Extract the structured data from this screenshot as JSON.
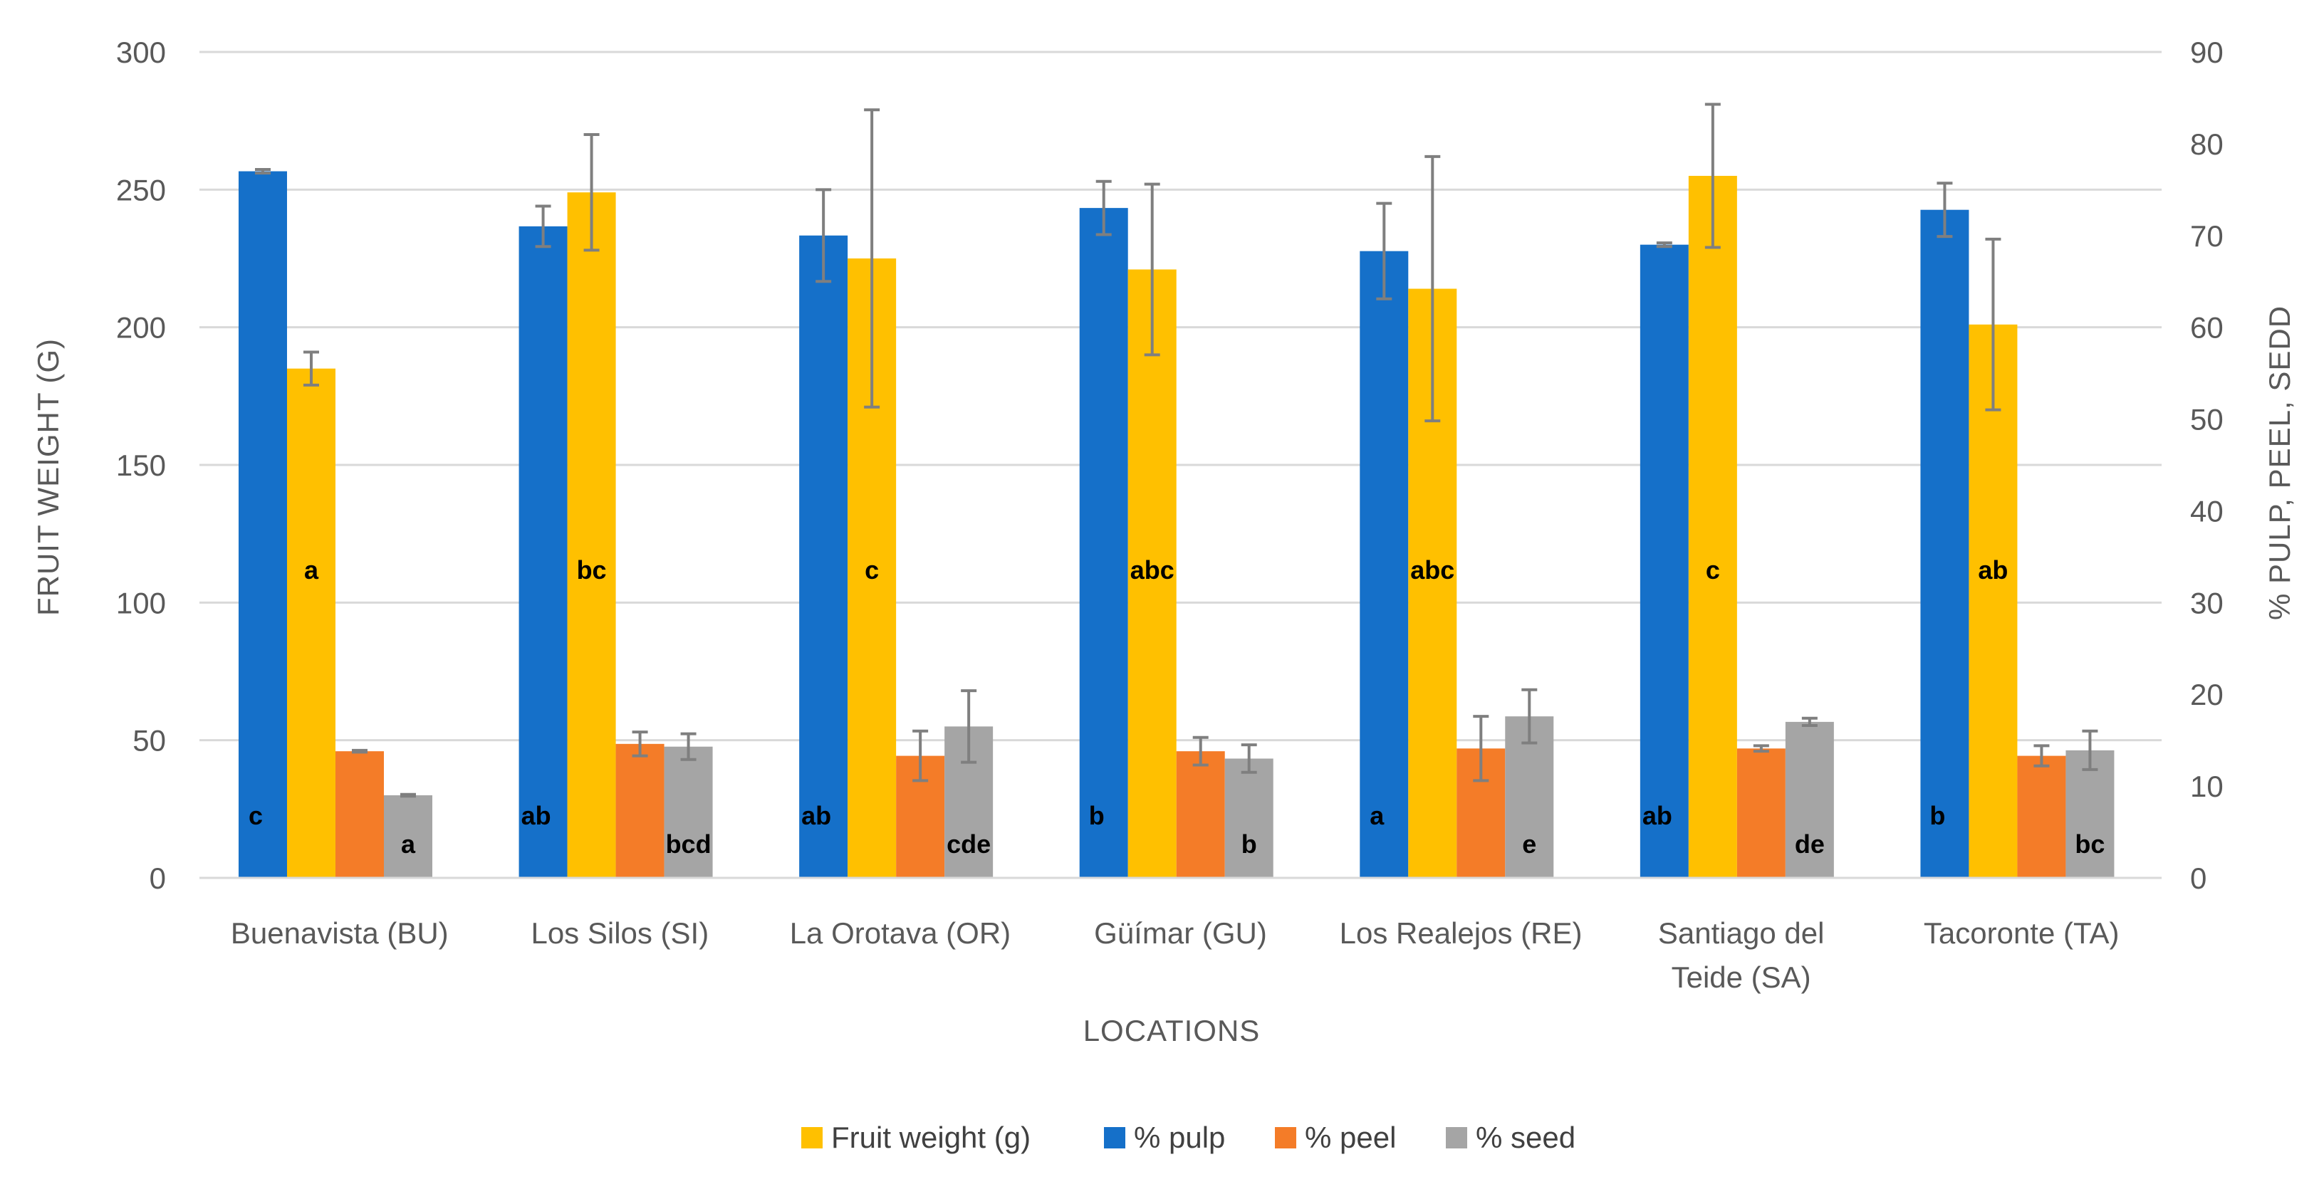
{
  "chart_data": {
    "type": "bar",
    "title": "",
    "xlabel": "LOCATIONS",
    "ylabel_left": "FRUIT WEIGHT (G)",
    "ylabel_right": "% PULP, PEEL, SEDD",
    "ylim_left": [
      0,
      300
    ],
    "ylim_right": [
      0,
      90
    ],
    "yticks_left": [
      "0",
      "50",
      "100",
      "150",
      "200",
      "250",
      "300"
    ],
    "yticks_right": [
      "0",
      "10",
      "20",
      "30",
      "40",
      "50",
      "60",
      "70",
      "80",
      "90"
    ],
    "grid": true,
    "legend_position": "bottom",
    "categories": [
      [
        "Buenavista (BU)"
      ],
      [
        "Los Silos (SI)"
      ],
      [
        "La Orotava (OR)"
      ],
      [
        "Güímar (GU)"
      ],
      [
        "Los Realejos (RE)"
      ],
      [
        "Santiago del",
        "Teide (SA)"
      ],
      [
        "Tacoronte (TA)"
      ]
    ],
    "series": [
      {
        "name": "% pulp",
        "axis": "right",
        "color": "#1570C9",
        "values": [
          77.0,
          71.0,
          70.0,
          73.0,
          68.3,
          69.0,
          72.8
        ],
        "errors": [
          0.2,
          2.2,
          5.0,
          2.9,
          5.2,
          0.2,
          2.9
        ],
        "letters": [
          "c",
          "ab",
          "ab",
          "b",
          "a",
          "ab",
          "b"
        ]
      },
      {
        "name": "Fruit weight (g)",
        "axis": "left",
        "color": "#FFC000",
        "values": [
          185,
          249,
          225,
          221,
          214,
          255,
          201
        ],
        "errors": [
          6,
          21,
          54,
          31,
          48,
          26,
          31
        ],
        "letters": [
          "a",
          "bc",
          "c",
          "abc",
          "abc",
          "c",
          "ab"
        ]
      },
      {
        "name": "% peel",
        "axis": "right",
        "color": "#F47C28",
        "values": [
          13.8,
          14.6,
          13.3,
          13.8,
          14.1,
          14.1,
          13.3
        ],
        "errors": [
          0.1,
          1.3,
          2.7,
          1.5,
          3.5,
          0.3,
          1.1
        ],
        "letters": [
          "",
          "",
          "",
          "",
          "",
          "",
          ""
        ]
      },
      {
        "name": "% seed",
        "axis": "right",
        "color": "#A5A5A5",
        "values": [
          9.0,
          14.3,
          16.5,
          13.0,
          17.6,
          17.0,
          13.9
        ],
        "errors": [
          0.1,
          1.4,
          3.9,
          1.5,
          2.9,
          0.4,
          2.1
        ],
        "letters": [
          "a",
          "bcd",
          "cde",
          "b",
          "e",
          "de",
          "bc"
        ]
      }
    ],
    "legend_order": [
      "Fruit weight (g)",
      "% pulp",
      "% peel",
      "% seed"
    ]
  }
}
